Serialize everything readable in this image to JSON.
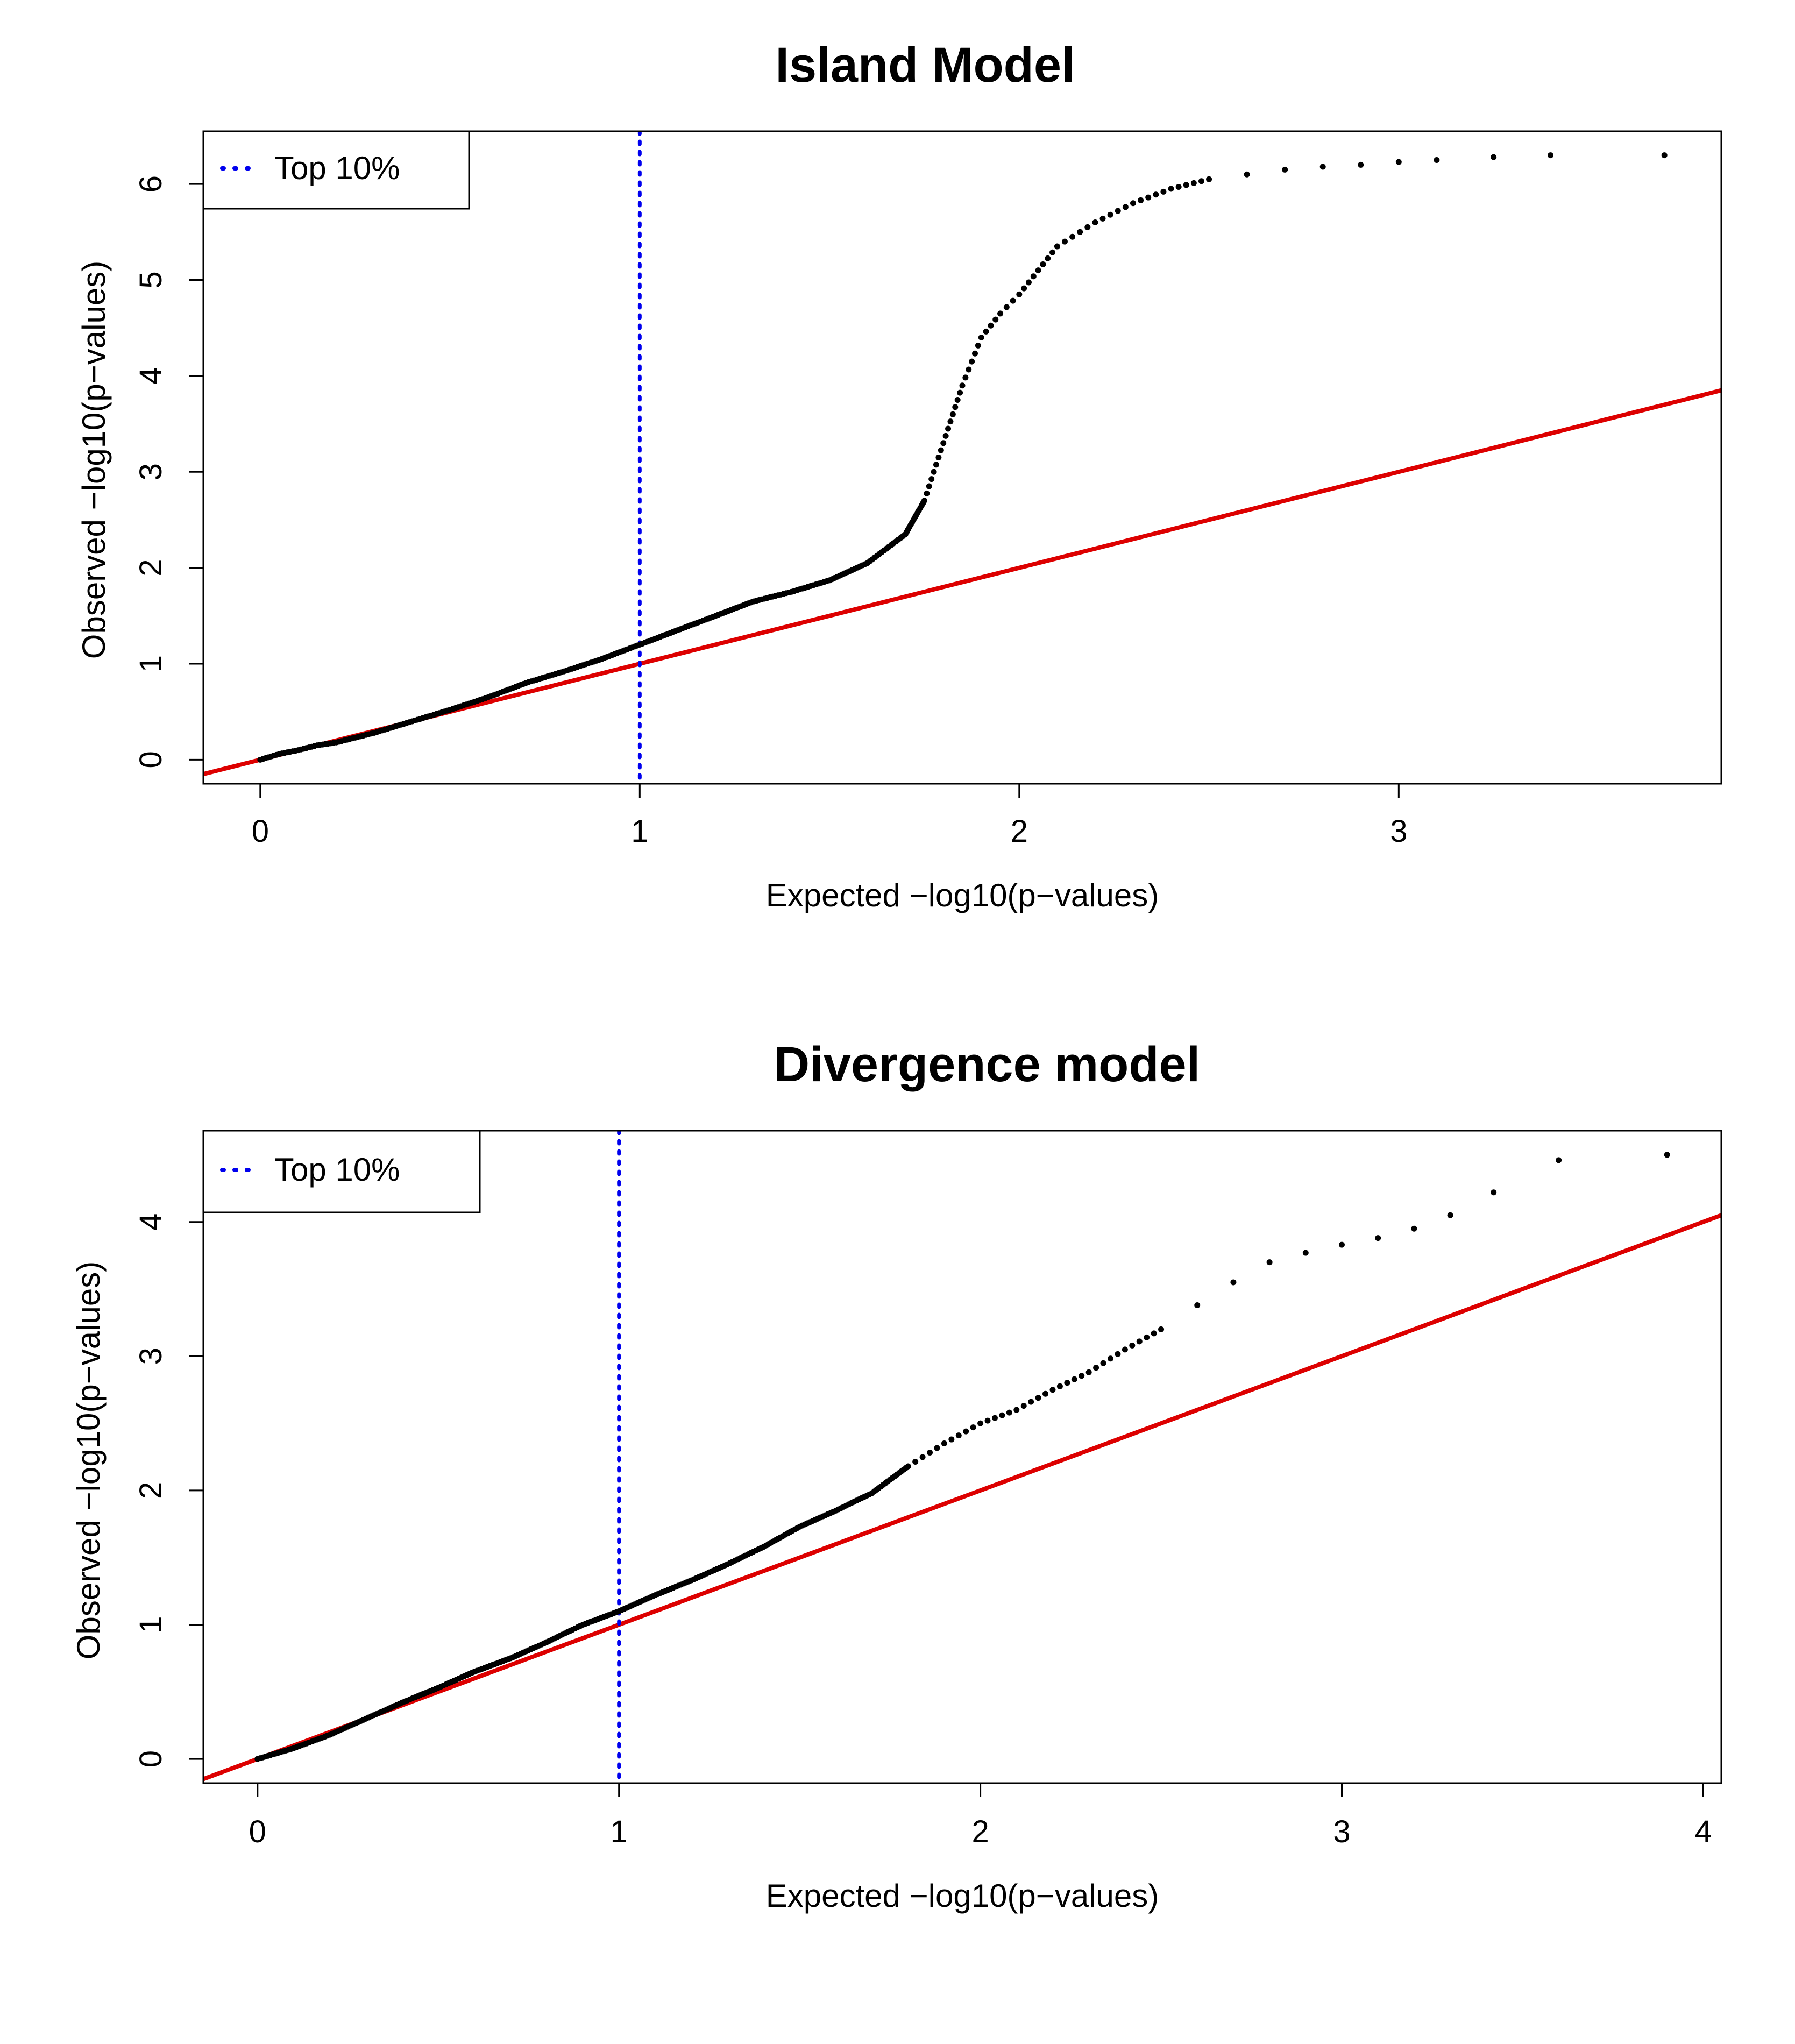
{
  "chart_data": [
    {
      "type": "scatter",
      "title": "Island Model",
      "xlabel": "Expected −log10(p−values)",
      "ylabel": "Observed −log10(p−values)",
      "xlim": [
        -0.15,
        3.85
      ],
      "ylim": [
        -0.25,
        6.55
      ],
      "xticks": [
        0,
        1,
        2,
        3
      ],
      "yticks": [
        0,
        1,
        2,
        3,
        4,
        5,
        6
      ],
      "legend": {
        "position": "top-left",
        "label": "Top 10%",
        "color": "#0000ee",
        "style": "dotted"
      },
      "vline": {
        "x": 1,
        "color": "#0000ee",
        "style": "dotted"
      },
      "reference_line": {
        "slope": 1,
        "intercept": 0,
        "color": "#dd0000"
      },
      "grid": false,
      "point_color": "#000000",
      "series": [
        {
          "points": [
            [
              0,
              0
            ],
            [
              0.05,
              0.06
            ],
            [
              0.1,
              0.1
            ],
            [
              0.15,
              0.15
            ],
            [
              0.2,
              0.18
            ],
            [
              0.3,
              0.28
            ],
            [
              0.4,
              0.4
            ],
            [
              0.5,
              0.52
            ],
            [
              0.6,
              0.65
            ],
            [
              0.7,
              0.8
            ],
            [
              0.8,
              0.92
            ],
            [
              0.9,
              1.05
            ],
            [
              1.0,
              1.2
            ],
            [
              1.1,
              1.35
            ],
            [
              1.2,
              1.5
            ],
            [
              1.3,
              1.65
            ],
            [
              1.4,
              1.75
            ],
            [
              1.5,
              1.87
            ],
            [
              1.6,
              2.05
            ],
            [
              1.65,
              2.2
            ],
            [
              1.7,
              2.35
            ],
            [
              1.75,
              2.7
            ],
            [
              1.8,
              3.3
            ],
            [
              1.85,
              3.9
            ],
            [
              1.9,
              4.4
            ],
            [
              1.95,
              4.65
            ],
            [
              2.0,
              4.85
            ],
            [
              2.05,
              5.1
            ],
            [
              2.1,
              5.35
            ],
            [
              2.2,
              5.6
            ],
            [
              2.3,
              5.8
            ],
            [
              2.4,
              5.95
            ],
            [
              2.5,
              6.05
            ],
            [
              2.6,
              6.1
            ],
            [
              2.7,
              6.15
            ],
            [
              2.8,
              6.18
            ],
            [
              2.9,
              6.2
            ],
            [
              3.0,
              6.23
            ],
            [
              3.1,
              6.25
            ],
            [
              3.25,
              6.28
            ],
            [
              3.4,
              6.3
            ],
            [
              3.7,
              6.3
            ]
          ]
        }
      ]
    },
    {
      "type": "scatter",
      "title": "Divergence model",
      "xlabel": "Expected −log10(p−values)",
      "ylabel": "Observed −log10(p−values)",
      "xlim": [
        -0.15,
        4.05
      ],
      "ylim": [
        -0.18,
        4.68
      ],
      "xticks": [
        0,
        1,
        2,
        3,
        4
      ],
      "yticks": [
        0,
        1,
        2,
        3,
        4
      ],
      "legend": {
        "position": "top-left",
        "label": "Top 10%",
        "color": "#0000ee",
        "style": "dotted"
      },
      "vline": {
        "x": 1,
        "color": "#0000ee",
        "style": "dotted"
      },
      "reference_line": {
        "slope": 1,
        "intercept": 0,
        "color": "#dd0000"
      },
      "grid": false,
      "point_color": "#000000",
      "series": [
        {
          "points": [
            [
              0,
              0
            ],
            [
              0.1,
              0.08
            ],
            [
              0.2,
              0.18
            ],
            [
              0.3,
              0.3
            ],
            [
              0.4,
              0.42
            ],
            [
              0.5,
              0.53
            ],
            [
              0.6,
              0.65
            ],
            [
              0.7,
              0.75
            ],
            [
              0.8,
              0.87
            ],
            [
              0.9,
              1.0
            ],
            [
              1.0,
              1.1
            ],
            [
              1.1,
              1.22
            ],
            [
              1.2,
              1.33
            ],
            [
              1.3,
              1.45
            ],
            [
              1.4,
              1.58
            ],
            [
              1.5,
              1.73
            ],
            [
              1.6,
              1.85
            ],
            [
              1.7,
              1.98
            ],
            [
              1.8,
              2.18
            ],
            [
              1.9,
              2.35
            ],
            [
              2.0,
              2.5
            ],
            [
              2.1,
              2.6
            ],
            [
              2.2,
              2.75
            ],
            [
              2.3,
              2.88
            ],
            [
              2.4,
              3.05
            ],
            [
              2.5,
              3.2
            ],
            [
              2.6,
              3.38
            ],
            [
              2.7,
              3.55
            ],
            [
              2.8,
              3.7
            ],
            [
              2.9,
              3.77
            ],
            [
              3.0,
              3.83
            ],
            [
              3.1,
              3.88
            ],
            [
              3.2,
              3.95
            ],
            [
              3.3,
              4.05
            ],
            [
              3.42,
              4.22
            ],
            [
              3.6,
              4.46
            ],
            [
              3.9,
              4.5
            ]
          ]
        }
      ]
    }
  ]
}
